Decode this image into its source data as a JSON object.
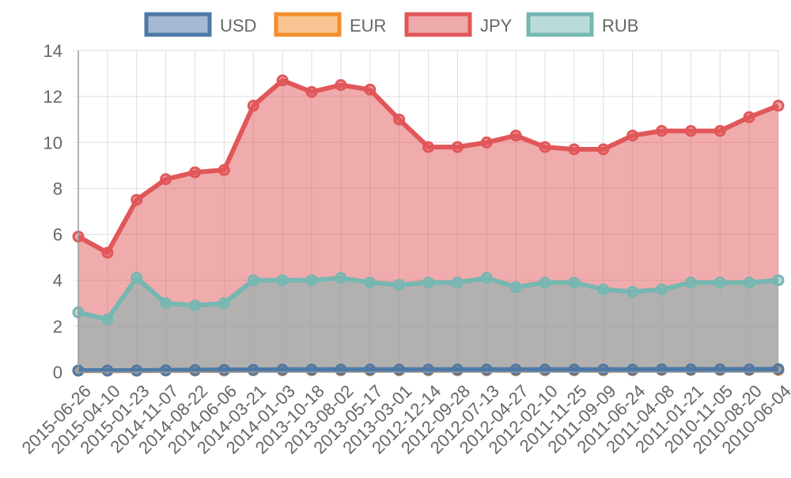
{
  "chart_data": {
    "type": "area",
    "categories": [
      "2015-06-26",
      "2015-04-10",
      "2015-01-23",
      "2014-11-07",
      "2014-08-22",
      "2014-06-06",
      "2014-03-21",
      "2014-01-03",
      "2013-10-18",
      "2013-08-02",
      "2013-05-17",
      "2013-03-01",
      "2012-12-14",
      "2012-09-28",
      "2012-07-13",
      "2012-04-27",
      "2012-02-10",
      "2011-11-25",
      "2011-09-09",
      "2011-06-24",
      "2011-04-08",
      "2011-01-21",
      "2010-11-05",
      "2010-08-20",
      "2010-06-04"
    ],
    "ylim": [
      0,
      14
    ],
    "yticks": [
      "0",
      "2",
      "4",
      "6",
      "8",
      "10",
      "12",
      "14"
    ],
    "grid": true,
    "legend_position": "top",
    "series": [
      {
        "name": "USD",
        "color": "#4e79a7",
        "fill": "#a6b8d3",
        "values": [
          0.07,
          0.07,
          0.07,
          0.08,
          0.09,
          0.1,
          0.1,
          0.11,
          0.11,
          0.11,
          0.11,
          0.11,
          0.11,
          0.11,
          0.11,
          0.11,
          0.11,
          0.11,
          0.11,
          0.11,
          0.12,
          0.12,
          0.12,
          0.12,
          0.13
        ]
      },
      {
        "name": "EUR",
        "color": "#f28e2b",
        "fill": "#f8c592",
        "values": [
          0.06,
          0.06,
          0.06,
          0.07,
          0.07,
          0.07,
          0.08,
          0.08,
          0.08,
          0.08,
          0.08,
          0.08,
          0.08,
          0.08,
          0.08,
          0.08,
          0.08,
          0.08,
          0.08,
          0.08,
          0.09,
          0.09,
          0.09,
          0.09,
          0.09
        ]
      },
      {
        "name": "JPY",
        "color": "#e15759",
        "fill": "#eea9aa",
        "values": [
          5.9,
          5.2,
          7.5,
          8.4,
          8.7,
          8.8,
          11.6,
          12.7,
          12.2,
          12.5,
          12.3,
          11.0,
          9.8,
          9.8,
          10.0,
          10.3,
          9.8,
          9.7,
          9.7,
          10.3,
          10.5,
          10.5,
          10.5,
          11.1,
          11.6
        ]
      },
      {
        "name": "RUB",
        "color": "#76b7b2",
        "fill": "#bbdbd8",
        "values": [
          2.6,
          2.3,
          4.1,
          3.0,
          2.9,
          3.0,
          4.0,
          4.0,
          4.0,
          4.1,
          3.9,
          3.8,
          3.9,
          3.9,
          4.1,
          3.7,
          3.9,
          3.9,
          3.6,
          3.5,
          3.6,
          3.9,
          3.9,
          3.9,
          4.0
        ]
      }
    ]
  }
}
